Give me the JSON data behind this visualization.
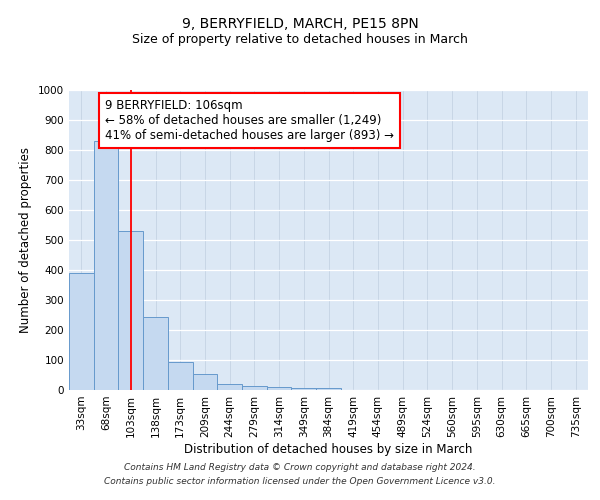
{
  "title": "9, BERRYFIELD, MARCH, PE15 8PN",
  "subtitle": "Size of property relative to detached houses in March",
  "xlabel": "Distribution of detached houses by size in March",
  "ylabel": "Number of detached properties",
  "bar_values": [
    390,
    830,
    530,
    242,
    95,
    52,
    20,
    15,
    10,
    8,
    8,
    0,
    0,
    0,
    0,
    0,
    0,
    0,
    0,
    0,
    0
  ],
  "bin_labels": [
    "33sqm",
    "68sqm",
    "103sqm",
    "138sqm",
    "173sqm",
    "209sqm",
    "244sqm",
    "279sqm",
    "314sqm",
    "349sqm",
    "384sqm",
    "419sqm",
    "454sqm",
    "489sqm",
    "524sqm",
    "560sqm",
    "595sqm",
    "630sqm",
    "665sqm",
    "700sqm",
    "735sqm"
  ],
  "bar_color": "#c5d9f0",
  "bar_edge_color": "#6699cc",
  "red_line_index": 2,
  "annotation_title": "9 BERRYFIELD: 106sqm",
  "annotation_line1": "← 58% of detached houses are smaller (1,249)",
  "annotation_line2": "41% of semi-detached houses are larger (893) →",
  "ylim": [
    0,
    1000
  ],
  "yticks": [
    0,
    100,
    200,
    300,
    400,
    500,
    600,
    700,
    800,
    900,
    1000
  ],
  "bg_color": "#dce8f5",
  "footer_line1": "Contains HM Land Registry data © Crown copyright and database right 2024.",
  "footer_line2": "Contains public sector information licensed under the Open Government Licence v3.0.",
  "title_fontsize": 10,
  "subtitle_fontsize": 9,
  "axis_label_fontsize": 8.5,
  "tick_fontsize": 7.5,
  "annotation_fontsize": 8.5
}
